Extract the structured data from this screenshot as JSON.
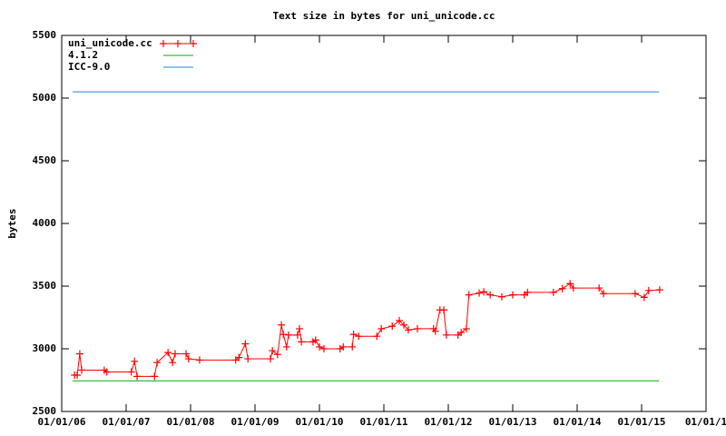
{
  "chart_data": {
    "type": "line",
    "title": "Text size in bytes for uni_unicode.cc",
    "y_label": "bytes",
    "xlim": [
      2006,
      2016
    ],
    "xticks": [
      {
        "value": 2006,
        "label": "01/01/06"
      },
      {
        "value": 2007,
        "label": "01/01/07"
      },
      {
        "value": 2008,
        "label": "01/01/08"
      },
      {
        "value": 2009,
        "label": "01/01/09"
      },
      {
        "value": 2010,
        "label": "01/01/10"
      },
      {
        "value": 2011,
        "label": "01/01/11"
      },
      {
        "value": 2012,
        "label": "01/01/12"
      },
      {
        "value": 2013,
        "label": "01/01/13"
      },
      {
        "value": 2014,
        "label": "01/01/14"
      },
      {
        "value": 2015,
        "label": "01/01/15"
      },
      {
        "value": 2016,
        "label": "01/01/1"
      }
    ],
    "ylim": [
      2500,
      5500
    ],
    "yticks": [
      2500,
      3000,
      3500,
      4000,
      4500,
      5000,
      5500
    ],
    "legend": "top-left",
    "series": [
      {
        "name": "uni_unicode.cc",
        "color": "#ff0000",
        "markers": true,
        "x": [
          2006.2,
          2006.24,
          2006.28,
          2006.31,
          2006.66,
          2006.7,
          2007.08,
          2007.13,
          2007.17,
          2007.44,
          2007.48,
          2007.65,
          2007.72,
          2007.76,
          2007.93,
          2007.97,
          2008.14,
          2008.7,
          2008.75,
          2008.85,
          2008.89,
          2009.24,
          2009.27,
          2009.35,
          2009.41,
          2009.44,
          2009.49,
          2009.52,
          2009.66,
          2009.69,
          2009.72,
          2009.9,
          2009.94,
          2010.0,
          2010.07,
          2010.32,
          2010.37,
          2010.51,
          2010.53,
          2010.61,
          2010.89,
          2010.96,
          2011.13,
          2011.24,
          2011.31,
          2011.38,
          2011.52,
          2011.77,
          2011.8,
          2011.87,
          2011.93,
          2011.97,
          2012.15,
          2012.2,
          2012.28,
          2012.32,
          2012.48,
          2012.55,
          2012.65,
          2012.83,
          2013.0,
          2013.18,
          2013.23,
          2013.63,
          2013.77,
          2013.89,
          2013.94,
          2014.34,
          2014.41,
          2014.9,
          2015.04,
          2015.11,
          2015.28
        ],
        "values": [
          2790,
          2790,
          2960,
          2830,
          2830,
          2815,
          2815,
          2900,
          2780,
          2780,
          2890,
          2970,
          2890,
          2960,
          2960,
          2920,
          2910,
          2910,
          2930,
          3040,
          2920,
          2920,
          2985,
          2955,
          3190,
          3115,
          3015,
          3110,
          3110,
          3160,
          3055,
          3055,
          3070,
          3015,
          3000,
          3000,
          3015,
          3015,
          3115,
          3100,
          3100,
          3160,
          3180,
          3225,
          3190,
          3150,
          3160,
          3160,
          3140,
          3310,
          3310,
          3110,
          3110,
          3130,
          3160,
          3430,
          3445,
          3455,
          3430,
          3415,
          3430,
          3430,
          3450,
          3450,
          3480,
          3520,
          3485,
          3485,
          3440,
          3440,
          3410,
          3465,
          3470
        ]
      },
      {
        "name": "4.1.2",
        "color": "#00b000",
        "x": [
          2006.17,
          2015.27
        ],
        "values": [
          2745,
          2745
        ]
      },
      {
        "name": "ICC-9.0",
        "color": "#1e8ad0",
        "x": [
          2006.17,
          2015.27
        ],
        "values": [
          5050,
          5050
        ]
      }
    ]
  }
}
